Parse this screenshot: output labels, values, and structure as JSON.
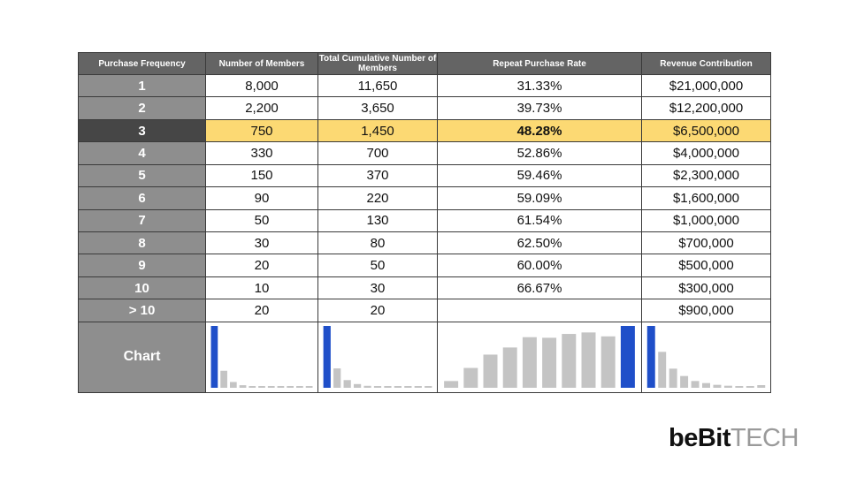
{
  "table": {
    "headers": [
      "Purchase Frequency",
      "Number of Members",
      "Total Cumulative Number of Members",
      "Repeat Purchase Rate",
      "Revenue Contribution"
    ],
    "rows": [
      [
        "1",
        "8,000",
        "11,650",
        "31.33%",
        "$21,000,000"
      ],
      [
        "2",
        "2,200",
        "3,650",
        "39.73%",
        "$12,200,000"
      ],
      [
        "3",
        "750",
        "1,450",
        "48.28%",
        "$6,500,000"
      ],
      [
        "4",
        "330",
        "700",
        "52.86%",
        "$4,000,000"
      ],
      [
        "5",
        "150",
        "370",
        "59.46%",
        "$2,300,000"
      ],
      [
        "6",
        "90",
        "220",
        "59.09%",
        "$1,600,000"
      ],
      [
        "7",
        "50",
        "130",
        "61.54%",
        "$1,000,000"
      ],
      [
        "8",
        "30",
        "80",
        "62.50%",
        "$700,000"
      ],
      [
        "9",
        "20",
        "50",
        "60.00%",
        "$500,000"
      ],
      [
        "10",
        "10",
        "30",
        "66.67%",
        "$300,000"
      ],
      [
        "> 10",
        "20",
        "20",
        "",
        "$900,000"
      ]
    ],
    "highlight_row": 2,
    "highlight_color": "#fcd973",
    "chart_row_label": "Chart"
  },
  "chart_data": [
    {
      "type": "bar",
      "column": "Number of Members",
      "values": [
        8000,
        2200,
        750,
        330,
        150,
        90,
        50,
        30,
        20,
        10,
        20
      ],
      "highlight_index": 0,
      "highlight_color": "#1f4fc9",
      "bar_color": "#c4c4c4"
    },
    {
      "type": "bar",
      "column": "Total Cumulative Number of Members",
      "values": [
        11650,
        3650,
        1450,
        700,
        370,
        220,
        130,
        80,
        50,
        30,
        20
      ],
      "highlight_index": 0,
      "highlight_color": "#1f4fc9",
      "bar_color": "#c4c4c4"
    },
    {
      "type": "bar",
      "column": "Repeat Purchase Rate",
      "values": [
        31.33,
        39.73,
        48.28,
        52.86,
        59.46,
        59.09,
        61.54,
        62.5,
        60.0,
        66.67
      ],
      "highlight_index": 9,
      "highlight_color": "#1f4fc9",
      "bar_color": "#c4c4c4"
    },
    {
      "type": "bar",
      "column": "Revenue Contribution",
      "values": [
        21000000,
        12200000,
        6500000,
        4000000,
        2300000,
        1600000,
        1000000,
        700000,
        500000,
        300000,
        900000
      ],
      "highlight_index": 0,
      "highlight_color": "#1f4fc9",
      "bar_color": "#c4c4c4"
    }
  ],
  "logo": {
    "dark": "beBit",
    "light": "TECH"
  }
}
